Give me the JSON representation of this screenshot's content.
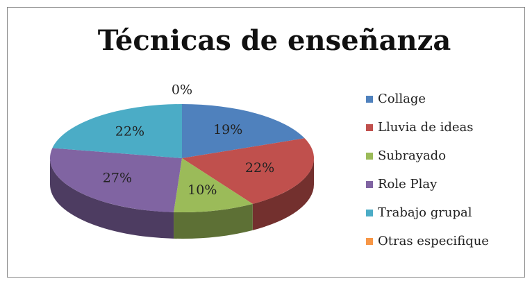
{
  "chart_data": {
    "type": "pie",
    "title": "Técnicas de enseñanza",
    "categories": [
      "Collage",
      "Lluvia de ideas",
      "Subrayado",
      "Role Play",
      "Trabajo grupal",
      "Otras especifique"
    ],
    "values": [
      19,
      22,
      10,
      27,
      22,
      0
    ],
    "value_labels": [
      "19%",
      "22%",
      "10%",
      "27%",
      "22%",
      "0%"
    ],
    "colors": [
      "#4f81bd",
      "#c0504d",
      "#9bbb59",
      "#8064a2",
      "#4bacc6",
      "#f79646"
    ],
    "legend": "right"
  }
}
